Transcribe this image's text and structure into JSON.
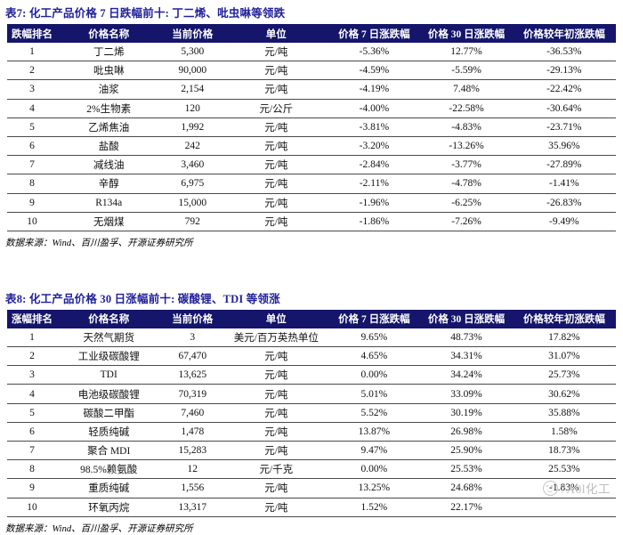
{
  "colors": {
    "header_bg": "#15156b",
    "title_text": "#21219b",
    "row_line": "#4a4a4a",
    "watermark": "#bdbdbd"
  },
  "tables": [
    {
      "title": "表7: 化工产品价格 7 日跌幅前十: 丁二烯、吡虫啉等领跌",
      "columns": [
        "跌幅排名",
        "价格名称",
        "当前价格",
        "单位",
        "价格 7 日涨跌幅",
        "价格 30 日涨跌幅",
        "价格较年初涨跌幅"
      ],
      "rows": [
        [
          "1",
          "丁二烯",
          "5,300",
          "元/吨",
          "-5.36%",
          "12.77%",
          "-36.53%"
        ],
        [
          "2",
          "吡虫啉",
          "90,000",
          "元/吨",
          "-4.59%",
          "-5.59%",
          "-29.13%"
        ],
        [
          "3",
          "油浆",
          "2,154",
          "元/吨",
          "-4.19%",
          "7.48%",
          "-22.42%"
        ],
        [
          "4",
          "2%生物素",
          "120",
          "元/公斤",
          "-4.00%",
          "-22.58%",
          "-30.64%"
        ],
        [
          "5",
          "乙烯焦油",
          "1,992",
          "元/吨",
          "-3.81%",
          "-4.83%",
          "-23.71%"
        ],
        [
          "6",
          "盐酸",
          "242",
          "元/吨",
          "-3.20%",
          "-13.26%",
          "35.96%"
        ],
        [
          "7",
          "减线油",
          "3,460",
          "元/吨",
          "-2.84%",
          "-3.77%",
          "-27.89%"
        ],
        [
          "8",
          "辛醇",
          "6,975",
          "元/吨",
          "-2.11%",
          "-4.78%",
          "-1.41%"
        ],
        [
          "9",
          "R134a",
          "15,000",
          "元/吨",
          "-1.96%",
          "-6.25%",
          "-26.83%"
        ],
        [
          "10",
          "无烟煤",
          "792",
          "元/吨",
          "-1.86%",
          "-7.26%",
          "-9.49%"
        ]
      ],
      "source": "数据来源：Wind、百川盈孚、开源证券研究所"
    },
    {
      "title": "表8: 化工产品价格 30 日涨幅前十: 碳酸锂、TDI 等领涨",
      "columns": [
        "涨幅排名",
        "价格名称",
        "当前价格",
        "单位",
        "价格 7 日涨跌幅",
        "价格 30 日涨跌幅",
        "价格较年初涨跌幅"
      ],
      "rows": [
        [
          "1",
          "天然气期货",
          "3",
          "美元/百万英热单位",
          "9.65%",
          "48.73%",
          "17.82%"
        ],
        [
          "2",
          "工业级碳酸锂",
          "67,470",
          "元/吨",
          "4.65%",
          "34.31%",
          "31.07%"
        ],
        [
          "3",
          "TDI",
          "13,625",
          "元/吨",
          "0.00%",
          "34.24%",
          "25.73%"
        ],
        [
          "4",
          "电池级碳酸锂",
          "70,319",
          "元/吨",
          "5.01%",
          "33.09%",
          "30.62%"
        ],
        [
          "5",
          "碳酸二甲酯",
          "7,460",
          "元/吨",
          "5.52%",
          "30.19%",
          "35.88%"
        ],
        [
          "6",
          "轻质纯碱",
          "1,478",
          "元/吨",
          "13.87%",
          "26.98%",
          "1.58%"
        ],
        [
          "7",
          "聚合 MDI",
          "15,283",
          "元/吨",
          "9.47%",
          "25.90%",
          "18.73%"
        ],
        [
          "8",
          "98.5%赖氨酸",
          "12",
          "元/千克",
          "0.00%",
          "25.53%",
          "25.53%"
        ],
        [
          "9",
          "重质纯碱",
          "1,556",
          "元/吨",
          "13.25%",
          "24.68%",
          "-1.83%"
        ],
        [
          "10",
          "环氧丙烷",
          "13,317",
          "元/吨",
          "1.52%",
          "22.17%",
          ""
        ]
      ],
      "source": "数据来源：Wind、百川盈孚、开源证券研究所"
    }
  ],
  "watermark": {
    "text": "7A0l化工",
    "icon": "smiley-face-icon"
  }
}
